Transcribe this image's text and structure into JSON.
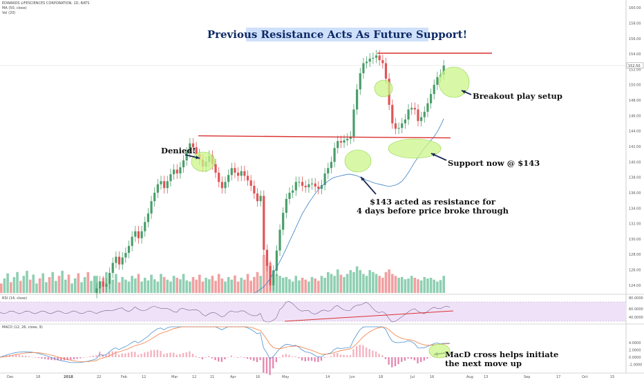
{
  "header": {
    "symbol_line": "EDWARDS LIFESCIENCES CORPORATION, 1D, BATS",
    "ma_line": "MA (50, close)",
    "vol_line": "Vol (20)",
    "rsi_label": "RSI (14, close)",
    "macd_label": "MACD (12, 26, close, 9)"
  },
  "title": "Previous Resistance Acts As Future Support!",
  "annotations": {
    "denied": "Denied!",
    "breakout": "Breakout play setup",
    "support": "Support now @ $143",
    "resistance_line1": "$143 acted as resistance for",
    "resistance_line2": "4 days before price broke through",
    "macd_line1": "MacD cross helps initiate",
    "macd_line2": "the next move up"
  },
  "colors": {
    "up": "#4a9e6a",
    "down": "#e05456",
    "vol_up": "#8fcfb2",
    "vol_down": "#f1a0a0",
    "ma": "#3a7fc0",
    "resistance": "#d93030",
    "highlight": "#ccf58a",
    "rsi_band": "#efe2f8",
    "rsi_line": "#7a5c8e",
    "macd": "#4a90d0",
    "signal": "#f07c40",
    "hist_pos": "#f4b3c0",
    "hist_neg": "#e48ab2",
    "title_bg": "#cfe0fb",
    "title_text": "#0e2a66"
  },
  "chart_data": {
    "type": "candlestick",
    "price_ticks": [
      "160.00",
      "158.00",
      "156.00",
      "154.00",
      "152.00",
      "150.00",
      "148.00",
      "146.00",
      "144.00",
      "142.00",
      "140.00",
      "138.00",
      "136.00",
      "134.00",
      "132.00",
      "130.00",
      "128.00",
      "126.00",
      "124.00"
    ],
    "price_ylim": [
      123,
      161
    ],
    "current_price": "152.50",
    "rsi_ticks": [
      "80.0000",
      "60.0000",
      "40.0000"
    ],
    "macd_ticks": [
      "4.0000",
      "2.0000",
      "0.0000",
      "-2.0000"
    ],
    "x_ticks": [
      "Dec",
      "18",
      "2018",
      "22",
      "Feb",
      "12",
      "Mar",
      "12",
      "21",
      "Apr",
      "16",
      "May",
      "14",
      "Jun",
      "18",
      "Jul",
      "16",
      "Aug",
      "13",
      "Sep",
      "17",
      "Oct",
      "15"
    ],
    "resistance_price": 143.2,
    "breakout_price": 154.1,
    "closes": [
      123.6,
      124.5,
      123.8,
      124.2,
      125.6,
      126.9,
      127.7,
      126.7,
      127.6,
      128.2,
      129.1,
      130.3,
      131.0,
      130.1,
      131.0,
      132.2,
      133.3,
      134.9,
      136.0,
      137.1,
      137.5,
      136.6,
      137.5,
      138.4,
      139.0,
      138.5,
      139.3,
      140.2,
      141.2,
      142.4,
      141.9,
      141.0,
      140.3,
      139.4,
      140.0,
      140.8,
      139.7,
      138.6,
      137.4,
      136.6,
      137.4,
      138.3,
      139.2,
      138.6,
      138.2,
      138.8,
      138.2,
      137.6,
      136.9,
      135.9,
      134.9,
      135.6,
      128.6,
      126.5,
      124.0,
      125.9,
      128.5,
      131.2,
      133.4,
      135.2,
      136.0,
      136.3,
      137.4,
      137.4,
      136.9,
      136.7,
      137.1,
      137.2,
      136.8,
      136.5,
      137.0,
      138.5,
      139.2,
      140.0,
      141.8,
      142.7,
      142.5,
      142.8,
      143.0,
      143.3,
      146.8,
      149.4,
      151.5,
      152.8,
      153.0,
      153.4,
      153.5,
      153.8,
      153.2,
      152.8,
      150.8,
      147.4,
      145.0,
      144.3,
      144.4,
      145.0,
      145.5,
      146.8,
      147.0,
      146.8,
      145.3,
      145.8,
      146.5,
      147.6,
      148.8,
      150.0,
      151.0,
      151.3,
      152.5
    ],
    "volume_relative": [
      0.45,
      0.3,
      0.4,
      0.55,
      0.3,
      0.35,
      0.5,
      0.28,
      0.42,
      0.35,
      0.3,
      0.45,
      0.38,
      0.5,
      0.3,
      0.4,
      0.33,
      0.48,
      0.36,
      0.3,
      0.5,
      0.42,
      0.35,
      0.3,
      0.45,
      0.4,
      0.36,
      0.5,
      0.33,
      0.3,
      0.42,
      0.35,
      0.48,
      0.3,
      0.4,
      0.36,
      0.45,
      0.32,
      0.5,
      0.38,
      0.3,
      0.42,
      0.35,
      0.46,
      0.3,
      0.4,
      0.35,
      0.5,
      0.32,
      0.42,
      0.55,
      0.45,
      1.0,
      0.9,
      0.8,
      0.6,
      0.5,
      0.45,
      0.4,
      0.42,
      0.36,
      0.3,
      0.45,
      0.33,
      0.4,
      0.35,
      0.3,
      0.42,
      0.38,
      0.32,
      0.45,
      0.4,
      0.55,
      0.5,
      0.45,
      0.62,
      0.48,
      0.42,
      0.5,
      0.6,
      0.55,
      0.7,
      0.6,
      0.5,
      0.45,
      0.6,
      0.55,
      0.5,
      0.45,
      0.4,
      0.55,
      0.62,
      0.5,
      0.45,
      0.4,
      0.42,
      0.36,
      0.38,
      0.45,
      0.4,
      0.36,
      0.33,
      0.42,
      0.38,
      0.4,
      0.35,
      0.3,
      0.34,
      0.45
    ],
    "series": [
      {
        "name": "MA (50, close)",
        "values": [
          123.0,
          123.2,
          123.5,
          123.8,
          124.3,
          124.9,
          125.6,
          126.3,
          127.1,
          127.9,
          128.8,
          129.7,
          130.6,
          131.5,
          132.4,
          133.3,
          134.0,
          134.7,
          135.3,
          135.9,
          136.4,
          136.8,
          137.2,
          137.5,
          137.8,
          138.0,
          138.1,
          138.2,
          138.3,
          138.4,
          138.4,
          138.3,
          138.2,
          138.0,
          137.8,
          137.6,
          137.5,
          137.3,
          137.2,
          137.1,
          137.0,
          136.9,
          136.8,
          136.9,
          137.0,
          137.2,
          137.5,
          138.0,
          138.6,
          139.3,
          140.0,
          140.6,
          141.2,
          141.8,
          142.3,
          142.8,
          143.3,
          143.9,
          144.7,
          145.6
        ]
      }
    ]
  }
}
